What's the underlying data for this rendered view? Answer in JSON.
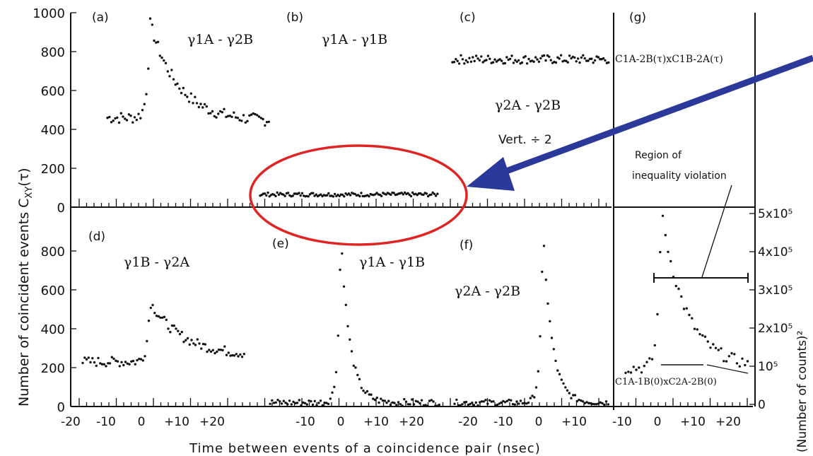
{
  "figure": {
    "ylabel": "Number of coincident events C",
    "ylabel_sub": "XY",
    "ylabel_arg": "(τ)",
    "xlabel": "Time between events of a coincidence pair (nsec)",
    "right_ylabel": "(Number of counts)²",
    "annotation_vert": "Vert. ÷ 2",
    "annotation_region": [
      "Region of",
      "inequality violation"
    ],
    "annotation_product_top": "C1A-2B(τ)xC1B-2A(τ)",
    "annotation_product_bottom": "C1A-1B(0)xC2A-2B(0)",
    "arrow_color": "#2b3a9a",
    "ellipse_color": "#e02424"
  },
  "chart_data": [
    {
      "type": "scatter",
      "panel": "a",
      "label": "(a)",
      "series": [
        {
          "name": "γ1A - γ2B",
          "baseline": 460,
          "peak": 950,
          "tail": 440,
          "decay": 8
        }
      ],
      "x_range": [
        -20,
        27
      ],
      "ylim": [
        0,
        1000
      ]
    },
    {
      "type": "scatter",
      "panel": "b",
      "label": "(b)",
      "series": [
        {
          "name": "γ1A - γ1B",
          "level": 65
        }
      ],
      "x_range": [
        -10,
        25
      ],
      "ylim": [
        0,
        1000
      ]
    },
    {
      "type": "scatter",
      "panel": "c",
      "label": "(c)",
      "series": [
        {
          "name": "γ2A - γ2B",
          "level": 760
        }
      ],
      "note": "Vert. ÷ 2",
      "x_range": [
        -20,
        27
      ],
      "ylim": [
        0,
        1000
      ]
    },
    {
      "type": "scatter",
      "panel": "d",
      "label": "(d)",
      "series": [
        {
          "name": "γ1B - γ2A",
          "baseline": 230,
          "peak": 540,
          "tail": 260,
          "decay": 9
        }
      ],
      "x_range": [
        -20,
        27
      ],
      "ylim": [
        0,
        1000
      ]
    },
    {
      "type": "scatter",
      "panel": "e",
      "label": "(e)",
      "series": [
        {
          "name": "γ1A - γ1B",
          "baseline": 20,
          "peak": 900,
          "decay": 2.5
        }
      ],
      "x_range": [
        -20,
        27
      ],
      "ylim": [
        0,
        1000
      ]
    },
    {
      "type": "scatter",
      "panel": "f",
      "label": "(f)",
      "series": [
        {
          "name": "γ2A - γ2B",
          "baseline": 20,
          "peak": 920,
          "decay": 2.5
        }
      ],
      "x_range": [
        -20,
        27
      ],
      "ylim": [
        0,
        1000
      ]
    },
    {
      "type": "scatter",
      "panel": "g",
      "label": "(g)",
      "series": [
        {
          "name": "C1A-2B(τ)xC1B-2A(τ)",
          "baseline": 100000,
          "peak": 510000,
          "tail": 100000,
          "decay": 7
        }
      ],
      "x_range": [
        -10,
        27
      ],
      "ylim": [
        0,
        600000
      ]
    }
  ],
  "axes": {
    "left_ticks": [
      "1000",
      "800",
      "600",
      "400",
      "200",
      "0"
    ],
    "x_ticks_panel_ad": [
      "-20",
      "-10",
      "0",
      "+10",
      "+20"
    ],
    "x_ticks_panel_e": [
      "-10",
      "0",
      "+10",
      "+20"
    ],
    "x_ticks_panel_f": [
      "-20",
      "-10",
      "0",
      "+10"
    ],
    "x_ticks_panel_g": [
      "-10",
      "0",
      "+10",
      "+20"
    ],
    "right_ticks": [
      "5x10⁵",
      "4x10⁵",
      "3x10⁵",
      "2x10⁵",
      "10⁵",
      "0"
    ]
  }
}
